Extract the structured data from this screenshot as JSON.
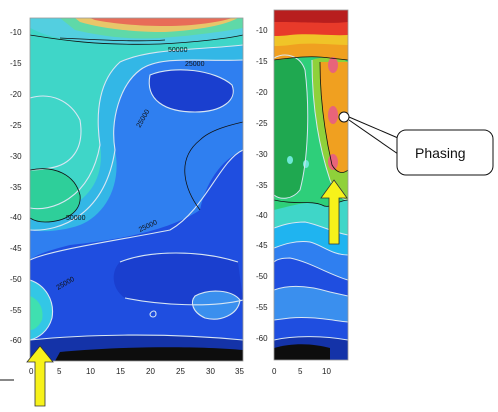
{
  "left_panel": {
    "y_ticks": [
      "-10",
      "-15",
      "-20",
      "-25",
      "-30",
      "-35",
      "-40",
      "-45",
      "-50",
      "-55",
      "-60"
    ],
    "x_ticks": [
      "0",
      "5",
      "10",
      "15",
      "20",
      "25",
      "30",
      "35"
    ],
    "contour_labels": [
      "50000",
      "25000",
      "25000",
      "50000",
      "25000",
      "25000"
    ]
  },
  "right_panel": {
    "y_ticks": [
      "-10",
      "-15",
      "-20",
      "-25",
      "-30",
      "-35",
      "-40",
      "-45",
      "-50",
      "-55",
      "-60"
    ],
    "x_ticks": [
      "0",
      "5",
      "10"
    ]
  },
  "callout": {
    "text": "Phasing"
  },
  "colors": {
    "arrow": "#f7f21a",
    "deep_blue": "#1a3fd6",
    "teal": "#2fd6c0"
  }
}
